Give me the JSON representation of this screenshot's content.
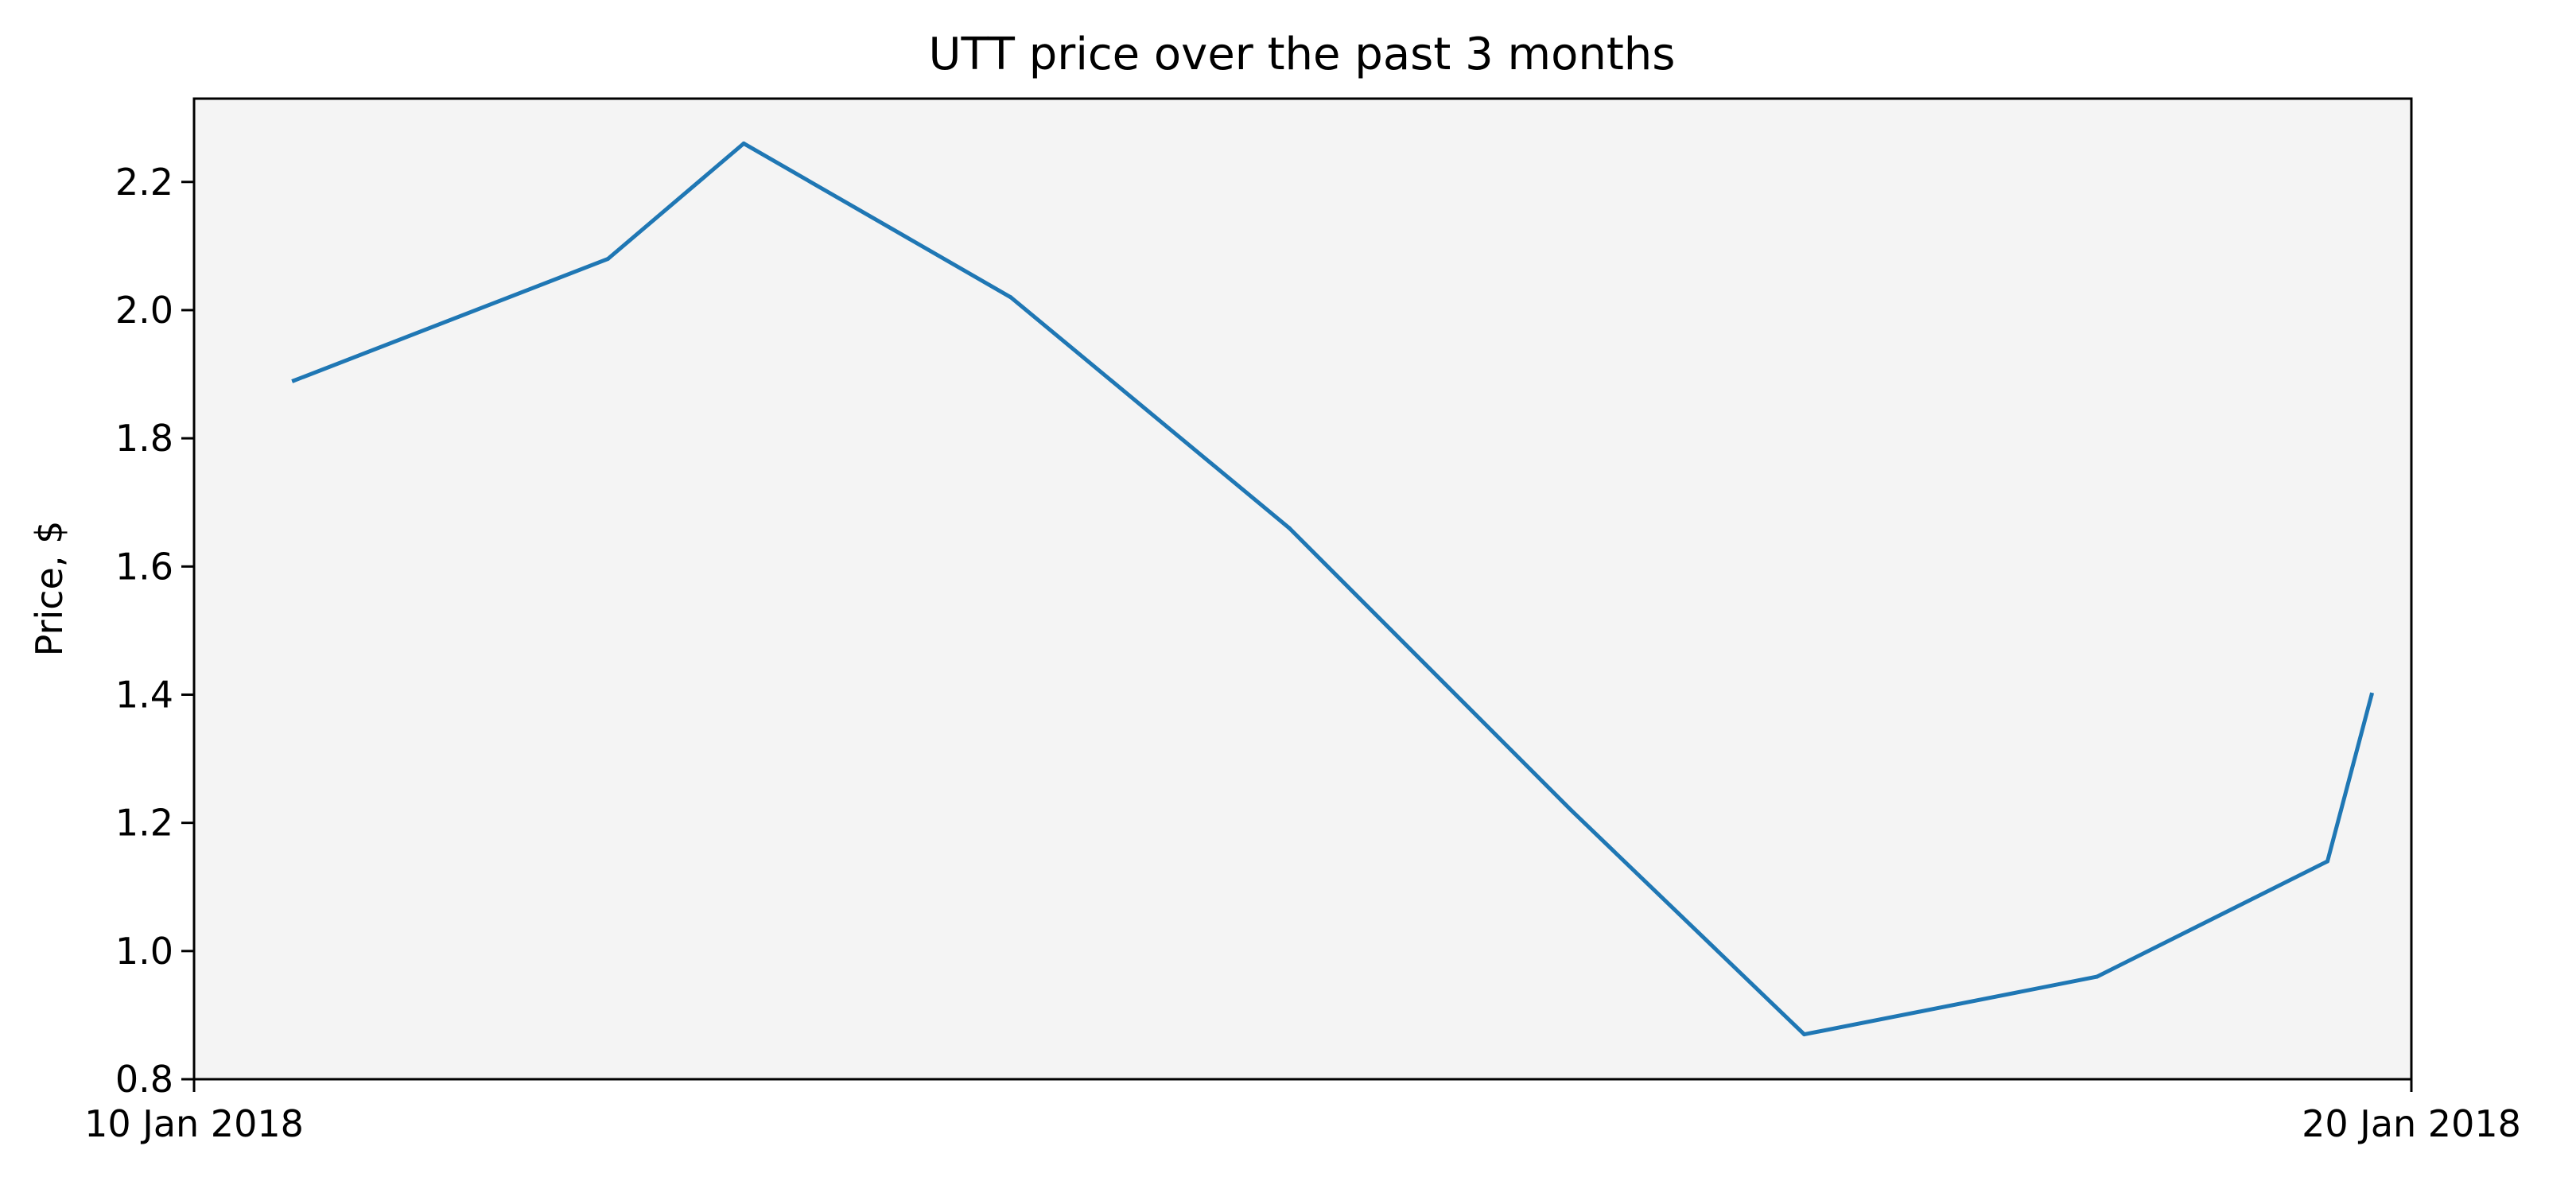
{
  "chart_data": {
    "type": "line",
    "title": "UTT price over the past 3 months",
    "xlabel": "",
    "ylabel": "Price, $",
    "x_tick_labels": [
      "10 Jan 2018",
      "20 Jan 2018"
    ],
    "y_ticks": [
      0.8,
      1.0,
      1.2,
      1.4,
      1.6,
      1.8,
      2.0,
      2.2
    ],
    "y_tick_labels": [
      "0.8",
      "1.0",
      "1.2",
      "1.4",
      "1.6",
      "1.8",
      "2.0",
      "2.2"
    ],
    "xlim": [
      "2018-01-10",
      "2018-01-20"
    ],
    "ylim": [
      0.8,
      2.33
    ],
    "grid": false,
    "series": [
      {
        "x": [
          "2018-01-10T10:48",
          "2018-01-11T20:48",
          "2018-01-12T11:30",
          "2018-01-13T16:24",
          "2018-01-14T22:32",
          "2018-01-16T05:02",
          "2018-01-17T06:17",
          "2018-01-18T13:58",
          "2018-01-19T14:55",
          "2018-01-19T19:42"
        ],
        "y": [
          1.89,
          2.08,
          2.26,
          2.02,
          1.66,
          1.22,
          0.87,
          0.96,
          1.14,
          1.4
        ]
      }
    ],
    "colors": {
      "line": "#1f77b4",
      "plot_background": "#f4f4f4",
      "axes": "#000000"
    }
  }
}
